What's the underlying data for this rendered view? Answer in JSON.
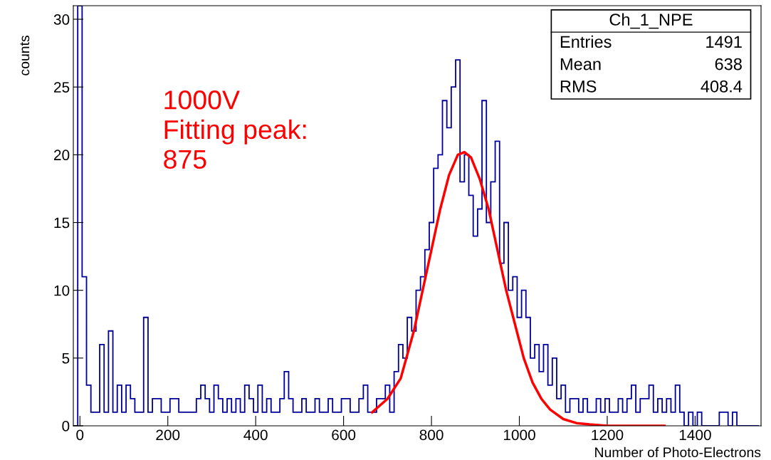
{
  "chart_data": {
    "type": "histogram",
    "xlabel": "Number of Photo-Electrons",
    "ylabel": "counts",
    "annotations": [
      "1000V\nFitting peak:\n875",
      "Ch_1_NPE",
      "Entries\t1491",
      "Mean\t638",
      "RMS\t408.4"
    ],
    "xlim": [
      -15,
      1550
    ],
    "ylim": [
      0,
      31
    ],
    "xticks": [
      0,
      200,
      400,
      600,
      800,
      1000,
      1200,
      1400
    ],
    "yticks": [
      0,
      5,
      10,
      15,
      20,
      25,
      30
    ],
    "grid": false,
    "legend": false,
    "bins": [
      -15,
      -5,
      5,
      15,
      25,
      35,
      45,
      55,
      65,
      75,
      85,
      95,
      105,
      115,
      125,
      135,
      145,
      155,
      165,
      175,
      185,
      195,
      205,
      215,
      225,
      235,
      245,
      255,
      265,
      275,
      285,
      295,
      305,
      315,
      325,
      335,
      345,
      355,
      365,
      375,
      385,
      395,
      405,
      415,
      425,
      435,
      445,
      455,
      465,
      475,
      485,
      495,
      505,
      515,
      525,
      535,
      545,
      555,
      565,
      575,
      585,
      595,
      605,
      615,
      625,
      635,
      645,
      655,
      665,
      675,
      685,
      695,
      705,
      715,
      725,
      735,
      745,
      755,
      765,
      775,
      785,
      795,
      805,
      815,
      825,
      835,
      845,
      855,
      865,
      875,
      885,
      895,
      905,
      915,
      925,
      935,
      945,
      955,
      965,
      975,
      985,
      995,
      1005,
      1015,
      1025,
      1035,
      1045,
      1055,
      1065,
      1075,
      1085,
      1095,
      1105,
      1115,
      1125,
      1135,
      1145,
      1155,
      1165,
      1175,
      1185,
      1195,
      1205,
      1215,
      1225,
      1235,
      1245,
      1255,
      1265,
      1275,
      1285,
      1295,
      1305,
      1315,
      1325,
      1335,
      1345,
      1355,
      1365,
      1375,
      1385,
      1395,
      1405,
      1415,
      1425,
      1435,
      1445,
      1455,
      1465,
      1475,
      1485,
      1495,
      1505,
      1515,
      1525,
      1535,
      1545
    ],
    "series": [
      {
        "color": "#000099",
        "values": [
          0,
          31,
          11,
          3,
          1,
          1,
          6,
          1,
          7,
          1,
          3,
          1,
          3,
          2,
          1,
          1,
          8,
          1,
          2,
          2,
          1,
          1,
          2,
          2,
          1,
          1,
          1,
          1,
          2,
          3,
          2,
          1,
          3,
          2,
          1,
          2,
          1,
          2,
          1,
          3,
          2,
          1,
          3,
          1,
          2,
          1,
          1,
          2,
          4,
          2,
          1,
          1,
          2,
          1,
          1,
          2,
          1,
          1,
          2,
          1,
          1,
          2,
          2,
          1,
          1,
          2,
          3,
          1,
          1,
          2,
          2,
          3,
          1,
          4,
          6,
          5,
          8,
          7,
          10,
          11,
          13,
          15,
          19,
          20,
          24,
          22,
          25,
          27,
          18,
          20,
          17,
          14,
          16,
          24,
          15,
          18,
          21,
          12,
          15,
          10,
          11,
          8,
          10,
          8,
          5,
          6,
          4,
          6,
          3,
          5,
          2,
          3,
          1,
          2,
          2,
          1,
          2,
          1,
          1,
          2,
          1,
          2,
          1,
          1,
          2,
          1,
          2,
          3,
          1,
          2,
          2,
          3,
          1,
          2,
          1,
          2,
          1,
          3,
          1,
          0,
          1,
          0,
          1,
          0,
          0,
          0,
          0,
          1,
          1,
          0,
          1,
          0,
          0,
          0,
          0,
          0
        ]
      },
      {
        "type": "line",
        "color": "#ff0000",
        "x": [
          665,
          700,
          730,
          760,
          780,
          800,
          820,
          840,
          860,
          875,
          890,
          910,
          930,
          950,
          970,
          990,
          1010,
          1030,
          1050,
          1070,
          1100,
          1130,
          1160,
          1200,
          1330
        ],
        "values": [
          1,
          2,
          3.5,
          7,
          10,
          13,
          16,
          18.5,
          20,
          20.2,
          19.8,
          18.2,
          16,
          13,
          10,
          7.5,
          5,
          3.2,
          2,
          1.2,
          0.5,
          0.2,
          0.1,
          0,
          0
        ]
      }
    ]
  }
}
